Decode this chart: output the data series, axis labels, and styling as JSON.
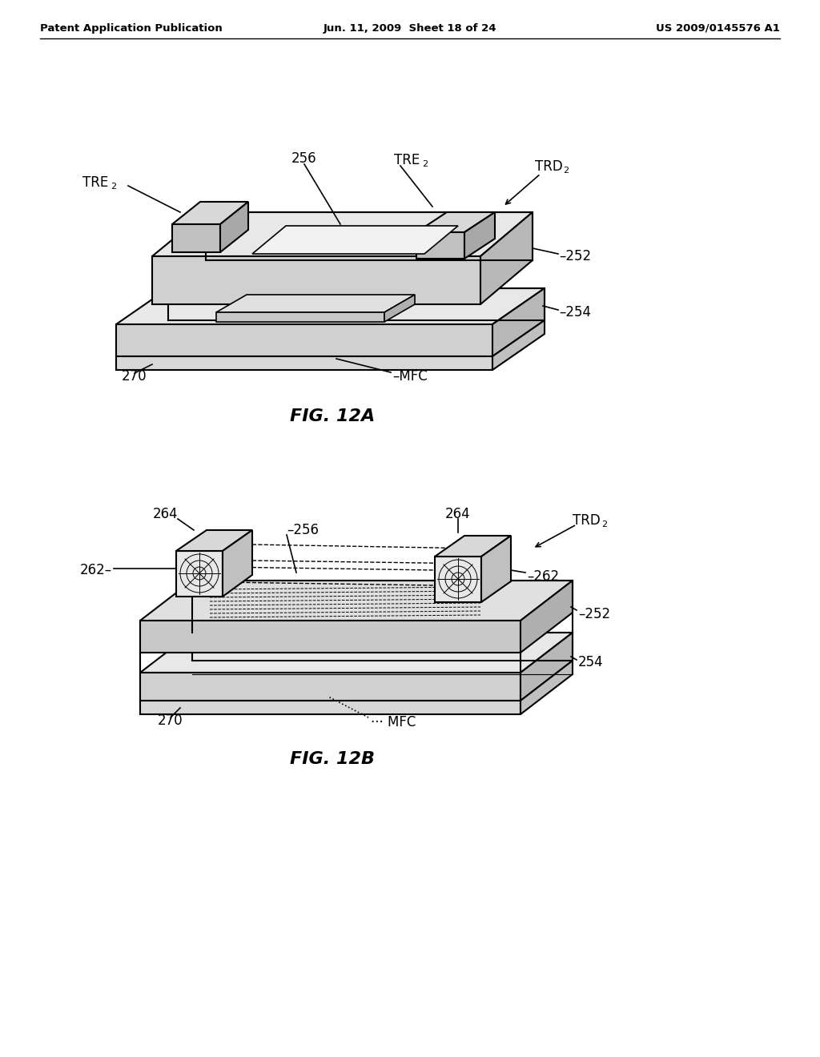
{
  "background_color": "#ffffff",
  "header_left": "Patent Application Publication",
  "header_center": "Jun. 11, 2009  Sheet 18 of 24",
  "header_right": "US 2009/0145576 A1",
  "fig_12a_title": "FIG. 12A",
  "fig_12b_title": "FIG. 12B",
  "line_color": "#000000",
  "line_width": 1.5
}
